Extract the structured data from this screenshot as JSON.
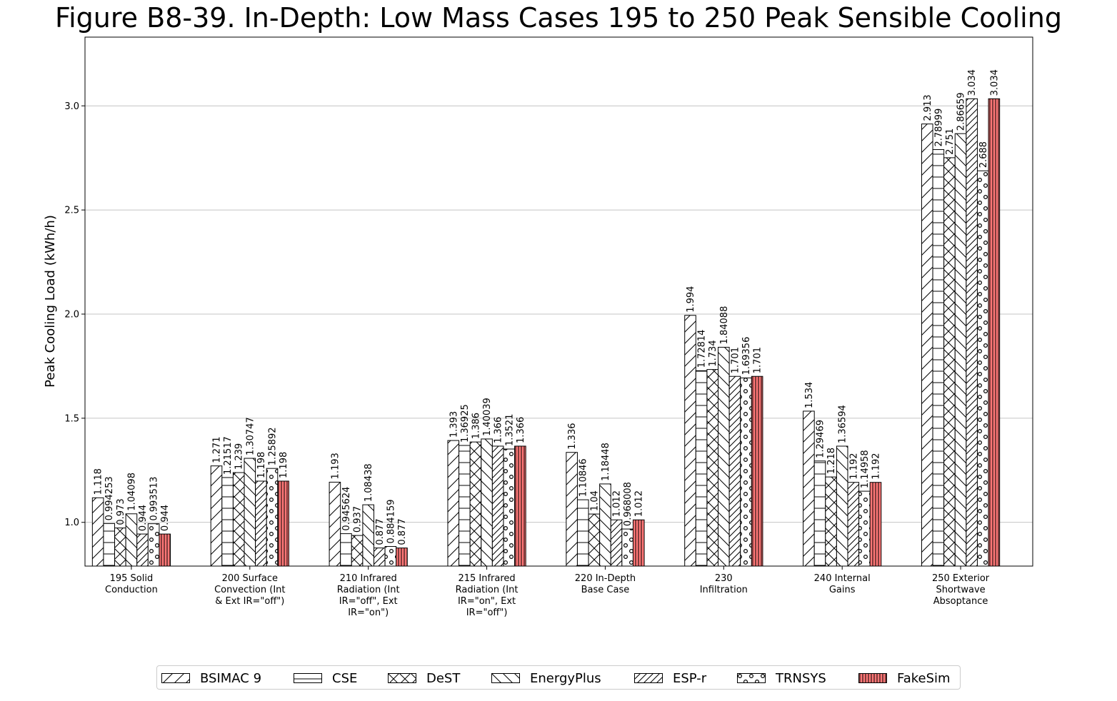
{
  "title": "Figure B8-39. In-Depth: Low Mass Cases 195 to 250 Peak Sensible Cooling",
  "chart_data": {
    "type": "bar",
    "title": "Figure B8-39. In-Depth: Low Mass Cases 195 to 250 Peak Sensible Cooling",
    "xlabel": "",
    "ylabel": "Peak Cooling Load (kWh/h)",
    "ylim": [
      0.79,
      3.33
    ],
    "yticks": [
      "1.0",
      "1.5",
      "2.0",
      "2.5",
      "3.0"
    ],
    "grid": "horizontal",
    "legend_position": "bottom",
    "categories": [
      [
        "195 Solid",
        "Conduction"
      ],
      [
        "200 Surface",
        "Convection (Int",
        "& Ext IR=\"off\")"
      ],
      [
        "210 Infrared",
        "Radiation (Int",
        "IR=\"off\", Ext",
        "IR=\"on\")"
      ],
      [
        "215 Infrared",
        "Radiation (Int",
        "IR=\"on\", Ext",
        "IR=\"off\")"
      ],
      [
        "220 In-Depth",
        "Base Case"
      ],
      [
        "230",
        "Infiltration"
      ],
      [
        "240 Internal",
        "Gains"
      ],
      [
        "250 Exterior",
        "Shortwave",
        "Absoptance"
      ]
    ],
    "series": [
      {
        "name": "BSIMAC 9",
        "pattern": "diag-fwd",
        "color": "#ffffff",
        "values": [
          1.118,
          1.271,
          1.193,
          1.393,
          1.336,
          1.994,
          1.534,
          2.913
        ],
        "labels": [
          "1.118",
          "1.271",
          "1.193",
          "1.393",
          "1.336",
          "1.994",
          "1.534",
          "2.913"
        ]
      },
      {
        "name": "CSE",
        "pattern": "horizontal",
        "color": "#ffffff",
        "values": [
          0.994253,
          1.21517,
          0.945624,
          1.36925,
          1.10846,
          1.72814,
          1.29469,
          2.78999
        ],
        "labels": [
          "0.994253",
          "1.21517",
          "0.945624",
          "1.36925",
          "1.10846",
          "1.72814",
          "1.29469",
          "2.78999"
        ]
      },
      {
        "name": "DeST",
        "pattern": "cross",
        "color": "#ffffff",
        "values": [
          0.973,
          1.239,
          0.937,
          1.386,
          1.04,
          1.734,
          1.218,
          2.751
        ],
        "labels": [
          "0.973",
          "1.239",
          "0.937",
          "1.386",
          "1.04",
          "1.734",
          "1.218",
          "2.751"
        ]
      },
      {
        "name": "EnergyPlus",
        "pattern": "diag-back",
        "color": "#ffffff",
        "values": [
          1.04098,
          1.30747,
          1.08438,
          1.40039,
          1.18448,
          1.84088,
          1.36594,
          2.86659
        ],
        "labels": [
          "1.04098",
          "1.30747",
          "1.08438",
          "1.40039",
          "1.18448",
          "1.84088",
          "1.36594",
          "2.86659"
        ]
      },
      {
        "name": "ESP-r",
        "pattern": "diag-fwd-dense",
        "color": "#ffffff",
        "values": [
          0.944,
          1.198,
          0.877,
          1.366,
          1.012,
          1.701,
          1.192,
          3.034
        ],
        "labels": [
          "0.944",
          "1.198",
          "0.877",
          "1.366",
          "1.012",
          "1.701",
          "1.192",
          "3.034"
        ]
      },
      {
        "name": "TRNSYS",
        "pattern": "circles",
        "color": "#ffffff",
        "values": [
          0.993513,
          1.25892,
          0.884159,
          1.3521,
          0.968008,
          1.69356,
          1.14958,
          2.688
        ],
        "labels": [
          "0.993513",
          "1.25892",
          "0.884159",
          "1.3521",
          "0.968008",
          "1.69356",
          "1.14958",
          "2.688"
        ]
      },
      {
        "name": "FakeSim",
        "pattern": "vertical",
        "color": "#ff7777",
        "values": [
          0.944,
          1.198,
          0.877,
          1.366,
          1.012,
          1.701,
          1.192,
          3.034
        ],
        "labels": [
          "0.944",
          "1.198",
          "0.877",
          "1.366",
          "1.012",
          "1.701",
          "1.192",
          "3.034"
        ]
      }
    ]
  }
}
